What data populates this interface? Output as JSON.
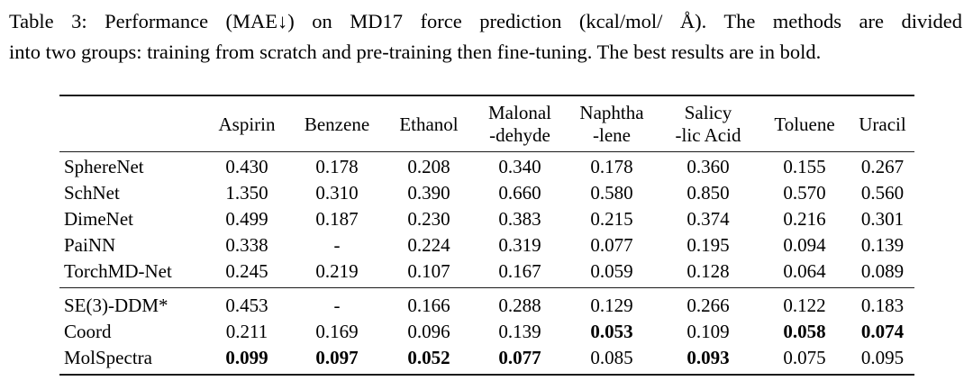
{
  "colors": {
    "text": "#000000",
    "rule": "#1b1b1b",
    "background": "#ffffff"
  },
  "caption": {
    "lines": [
      "Table 3: Performance (MAE↓) on MD17 force prediction (kcal/mol/ Å). The methods are divided",
      "into two groups: training from scratch and pre-training then fine-tuning. The best results are in bold."
    ]
  },
  "chart_data": {
    "type": "table",
    "title": "Table 3: Performance (MAE↓) on MD17 force prediction (kcal/mol/ Å)",
    "columns": [
      {
        "lines": [
          "Aspirin"
        ]
      },
      {
        "lines": [
          "Benzene"
        ]
      },
      {
        "lines": [
          "Ethanol"
        ]
      },
      {
        "lines": [
          "Malonal",
          "-dehyde"
        ]
      },
      {
        "lines": [
          "Naphtha",
          "-lene"
        ]
      },
      {
        "lines": [
          "Salicy",
          "-lic Acid"
        ]
      },
      {
        "lines": [
          "Toluene"
        ]
      },
      {
        "lines": [
          "Uracil"
        ]
      }
    ],
    "groups": [
      {
        "name": "training-from-scratch",
        "rows": [
          {
            "method": "SphereNet",
            "values": [
              "0.430",
              "0.178",
              "0.208",
              "0.340",
              "0.178",
              "0.360",
              "0.155",
              "0.267"
            ],
            "bold": [
              0,
              0,
              0,
              0,
              0,
              0,
              0,
              0
            ]
          },
          {
            "method": "SchNet",
            "values": [
              "1.350",
              "0.310",
              "0.390",
              "0.660",
              "0.580",
              "0.850",
              "0.570",
              "0.560"
            ],
            "bold": [
              0,
              0,
              0,
              0,
              0,
              0,
              0,
              0
            ]
          },
          {
            "method": "DimeNet",
            "values": [
              "0.499",
              "0.187",
              "0.230",
              "0.383",
              "0.215",
              "0.374",
              "0.216",
              "0.301"
            ],
            "bold": [
              0,
              0,
              0,
              0,
              0,
              0,
              0,
              0
            ]
          },
          {
            "method": "PaiNN",
            "values": [
              "0.338",
              "-",
              "0.224",
              "0.319",
              "0.077",
              "0.195",
              "0.094",
              "0.139"
            ],
            "bold": [
              0,
              0,
              0,
              0,
              0,
              0,
              0,
              0
            ]
          },
          {
            "method": "TorchMD-Net",
            "values": [
              "0.245",
              "0.219",
              "0.107",
              "0.167",
              "0.059",
              "0.128",
              "0.064",
              "0.089"
            ],
            "bold": [
              0,
              0,
              0,
              0,
              0,
              0,
              0,
              0
            ]
          }
        ]
      },
      {
        "name": "pretraining-then-finetuning",
        "rows": [
          {
            "method": "SE(3)-DDM*",
            "values": [
              "0.453",
              "-",
              "0.166",
              "0.288",
              "0.129",
              "0.266",
              "0.122",
              "0.183"
            ],
            "bold": [
              0,
              0,
              0,
              0,
              0,
              0,
              0,
              0
            ]
          },
          {
            "method": "Coord",
            "values": [
              "0.211",
              "0.169",
              "0.096",
              "0.139",
              "0.053",
              "0.109",
              "0.058",
              "0.074"
            ],
            "bold": [
              0,
              0,
              0,
              0,
              1,
              0,
              1,
              1
            ]
          },
          {
            "method": "MolSpectra",
            "values": [
              "0.099",
              "0.097",
              "0.052",
              "0.077",
              "0.085",
              "0.093",
              "0.075",
              "0.095"
            ],
            "bold": [
              1,
              1,
              1,
              1,
              0,
              1,
              0,
              0
            ]
          }
        ]
      }
    ]
  }
}
